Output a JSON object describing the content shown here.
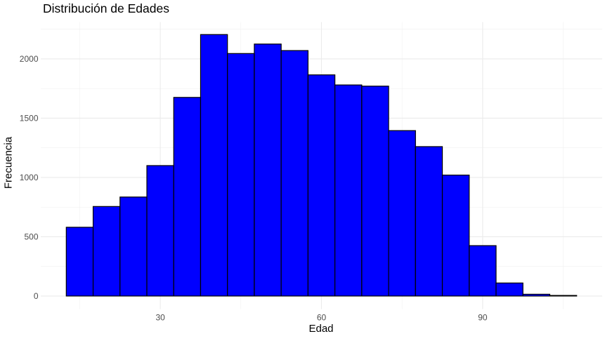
{
  "chart_data": {
    "type": "bar",
    "subtype": "histogram",
    "title": "Distribución de Edades",
    "xlabel": "Edad",
    "ylabel": "Frecuencia",
    "bin_width": 5,
    "bin_edges": [
      12.5,
      17.5,
      22.5,
      27.5,
      32.5,
      37.5,
      42.5,
      47.5,
      52.5,
      57.5,
      62.5,
      67.5,
      72.5,
      77.5,
      82.5,
      87.5,
      92.5,
      97.5,
      102.5,
      107.5
    ],
    "bin_centers": [
      15,
      20,
      25,
      30,
      35,
      40,
      45,
      50,
      55,
      60,
      65,
      70,
      75,
      80,
      85,
      90,
      95,
      100,
      105
    ],
    "values": [
      580,
      755,
      835,
      1100,
      1675,
      2205,
      2045,
      2125,
      2070,
      1865,
      1780,
      1770,
      1395,
      1260,
      1020,
      425,
      110,
      15,
      5
    ],
    "x_ticks": [
      30,
      60,
      90
    ],
    "y_ticks": [
      0,
      500,
      1000,
      1500,
      2000
    ],
    "x_minor_gridlines": [
      15,
      45,
      75,
      105
    ],
    "y_minor_gridlines": [
      250,
      750,
      1250,
      1750,
      2250
    ],
    "xlim": [
      7.75,
      112.25
    ],
    "ylim": [
      -110,
      2310
    ],
    "grid": "major-and-minor",
    "legend": "none",
    "colors": {
      "bar_fill": "#0000FF",
      "bar_stroke": "#000000",
      "grid_major": "#EBEBEB",
      "grid_minor": "#F1F1F1",
      "background": "#FFFFFF",
      "tick_label_color": "#4D4D4D",
      "axis_title_color": "#000000",
      "title_color": "#000000"
    }
  }
}
